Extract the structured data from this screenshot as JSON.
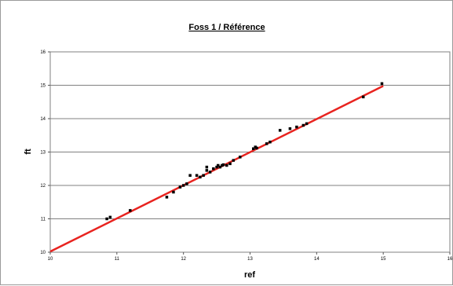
{
  "chart_data": {
    "type": "scatter",
    "title": "Foss 1 / Référence",
    "xlabel": "ref",
    "ylabel": "ft",
    "xlim": [
      10,
      16
    ],
    "ylim": [
      10,
      16
    ],
    "x_ticks": [
      10,
      11,
      12,
      13,
      14,
      15,
      16
    ],
    "y_ticks": [
      10,
      11,
      12,
      13,
      14,
      15,
      16
    ],
    "grid": "horizontal",
    "legend": "none",
    "colors": {
      "points": "#000000",
      "trendline": "#e8231f",
      "grid": "#808080",
      "plot_border": "#808080"
    },
    "trendline": {
      "x": [
        10,
        15
      ],
      "y": [
        10.02,
        14.98
      ]
    },
    "points": [
      {
        "x": 10.85,
        "y": 11.0
      },
      {
        "x": 10.9,
        "y": 11.05
      },
      {
        "x": 11.2,
        "y": 11.25
      },
      {
        "x": 11.75,
        "y": 11.65
      },
      {
        "x": 11.85,
        "y": 11.8
      },
      {
        "x": 11.95,
        "y": 11.95
      },
      {
        "x": 12.0,
        "y": 12.0
      },
      {
        "x": 12.05,
        "y": 12.05
      },
      {
        "x": 12.1,
        "y": 12.3
      },
      {
        "x": 12.2,
        "y": 12.3
      },
      {
        "x": 12.25,
        "y": 12.25
      },
      {
        "x": 12.3,
        "y": 12.3
      },
      {
        "x": 12.35,
        "y": 12.45
      },
      {
        "x": 12.35,
        "y": 12.55
      },
      {
        "x": 12.4,
        "y": 12.4
      },
      {
        "x": 12.45,
        "y": 12.5
      },
      {
        "x": 12.5,
        "y": 12.55
      },
      {
        "x": 12.52,
        "y": 12.6
      },
      {
        "x": 12.55,
        "y": 12.55
      },
      {
        "x": 12.58,
        "y": 12.6
      },
      {
        "x": 12.6,
        "y": 12.62
      },
      {
        "x": 12.65,
        "y": 12.6
      },
      {
        "x": 12.7,
        "y": 12.65
      },
      {
        "x": 12.75,
        "y": 12.75
      },
      {
        "x": 12.85,
        "y": 12.85
      },
      {
        "x": 13.05,
        "y": 13.1
      },
      {
        "x": 13.08,
        "y": 13.15
      },
      {
        "x": 13.1,
        "y": 13.12
      },
      {
        "x": 13.25,
        "y": 13.25
      },
      {
        "x": 13.3,
        "y": 13.3
      },
      {
        "x": 13.45,
        "y": 13.65
      },
      {
        "x": 13.6,
        "y": 13.7
      },
      {
        "x": 13.7,
        "y": 13.75
      },
      {
        "x": 13.8,
        "y": 13.8
      },
      {
        "x": 13.85,
        "y": 13.85
      },
      {
        "x": 14.7,
        "y": 14.65
      },
      {
        "x": 14.98,
        "y": 15.05
      }
    ]
  }
}
